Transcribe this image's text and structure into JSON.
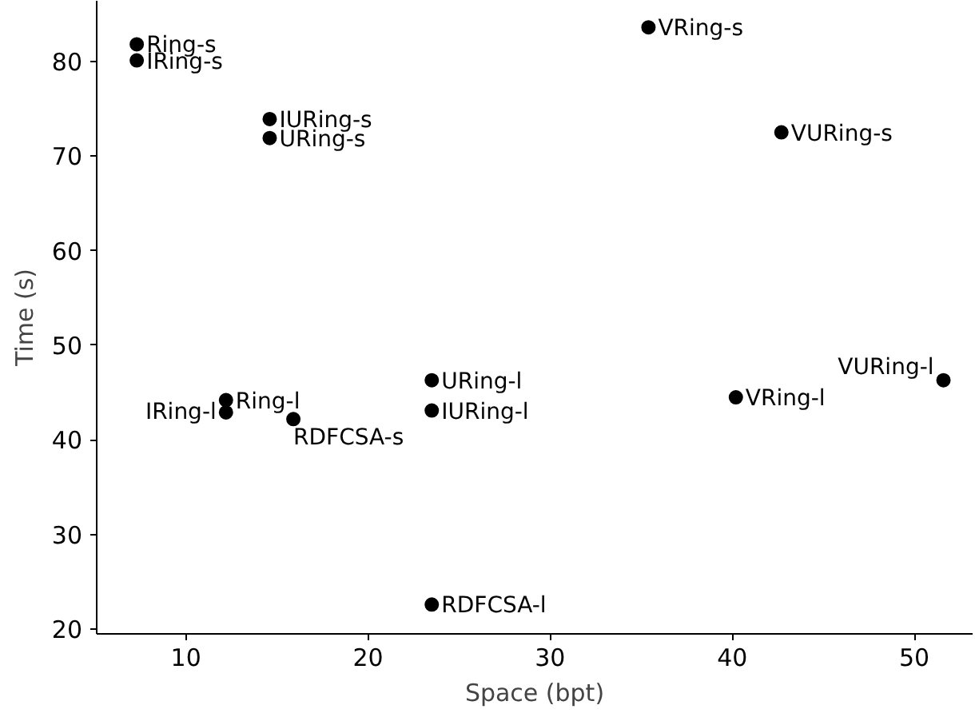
{
  "chart_data": {
    "type": "scatter",
    "xlabel": "Space (bpt)",
    "ylabel": "Time (s)",
    "x": [
      7.3,
      7.3,
      14.6,
      14.6,
      35.4,
      42.7,
      23.5,
      23.5,
      12.2,
      12.2,
      15.9,
      23.5,
      40.2,
      51.6
    ],
    "values": [
      81.8,
      80.1,
      73.9,
      71.9,
      83.6,
      72.5,
      46.3,
      43.1,
      44.2,
      42.9,
      42.2,
      22.6,
      44.5,
      46.3
    ],
    "color": "#000000",
    "marker": "circle",
    "grid": false,
    "xlim": [
      5.1,
      53.2
    ],
    "ylim": [
      19.5,
      86.4
    ],
    "xticks": [
      10,
      20,
      30,
      40,
      50
    ],
    "yticks": [
      20,
      30,
      40,
      50,
      60,
      70,
      80
    ],
    "annotations": [
      {
        "text": "Ring-s",
        "x": 7.3,
        "y": 81.8
      },
      {
        "text": "IRing-s",
        "x": 7.3,
        "y": 80.1
      },
      {
        "text": "IURing-s",
        "x": 14.6,
        "y": 73.9
      },
      {
        "text": "URing-s",
        "x": 14.6,
        "y": 71.9
      },
      {
        "text": "VRing-s",
        "x": 35.4,
        "y": 83.6
      },
      {
        "text": "VURing-s",
        "x": 42.7,
        "y": 72.5
      },
      {
        "text": "URing-l",
        "x": 23.5,
        "y": 46.3
      },
      {
        "text": "IURing-l",
        "x": 23.5,
        "y": 43.1
      },
      {
        "text": "Ring-l",
        "x": 12.2,
        "y": 44.2
      },
      {
        "text": "IRing-l",
        "x": 12.2,
        "y": 42.9
      },
      {
        "text": "RDFCSA-s",
        "x": 15.9,
        "y": 42.2
      },
      {
        "text": "RDFCSA-l",
        "x": 23.5,
        "y": 22.6
      },
      {
        "text": "VRing-l",
        "x": 40.2,
        "y": 44.5
      },
      {
        "text": "VURing-l",
        "x": 51.6,
        "y": 46.3
      }
    ]
  }
}
